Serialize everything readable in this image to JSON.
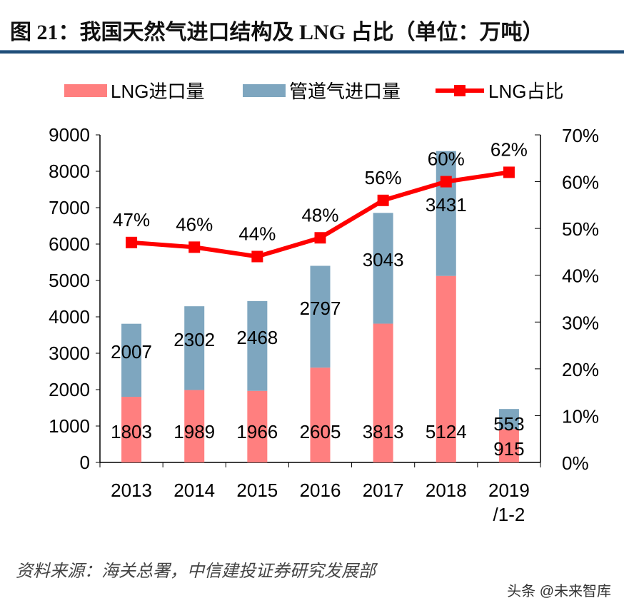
{
  "chart_data": {
    "type": "bar",
    "title": "图 21：我国天然气进口结构及 LNG 占比（单位：万吨）",
    "categories": [
      "2013",
      "2014",
      "2015",
      "2016",
      "2017",
      "2018",
      "2019/1-2"
    ],
    "category_lines": [
      [
        "2013"
      ],
      [
        "2014"
      ],
      [
        "2015"
      ],
      [
        "2016"
      ],
      [
        "2017"
      ],
      [
        "2018"
      ],
      [
        "2019",
        "/1-2"
      ]
    ],
    "series": [
      {
        "name": "LNG进口量",
        "kind": "stacked-bar",
        "axis": "left",
        "color": "#ff7f7f",
        "values": [
          1803,
          1989,
          1966,
          2605,
          3813,
          5124,
          915
        ]
      },
      {
        "name": "管道气进口量",
        "kind": "stacked-bar",
        "axis": "left",
        "color": "#7ea6bf",
        "values": [
          2007,
          2302,
          2468,
          2797,
          3043,
          3431,
          553
        ]
      },
      {
        "name": "LNG占比",
        "kind": "line",
        "axis": "right",
        "color": "#ff0000",
        "values": [
          47,
          46,
          44,
          48,
          56,
          60,
          62
        ],
        "labels": [
          "47%",
          "46%",
          "44%",
          "48%",
          "56%",
          "60%",
          "62%"
        ]
      }
    ],
    "left_axis": {
      "ylim": [
        0,
        9000
      ],
      "ticks": [
        "0",
        "1000",
        "2000",
        "3000",
        "4000",
        "5000",
        "6000",
        "7000",
        "8000",
        "9000"
      ]
    },
    "right_axis": {
      "ylim": [
        0,
        70
      ],
      "ticks": [
        "0%",
        "10%",
        "20%",
        "30%",
        "40%",
        "50%",
        "60%",
        "70%"
      ]
    },
    "legend": "top",
    "grid": false
  },
  "source": "资料来源：海关总署，中信建投证券研究发展部",
  "watermark": "头条 @未来智库"
}
